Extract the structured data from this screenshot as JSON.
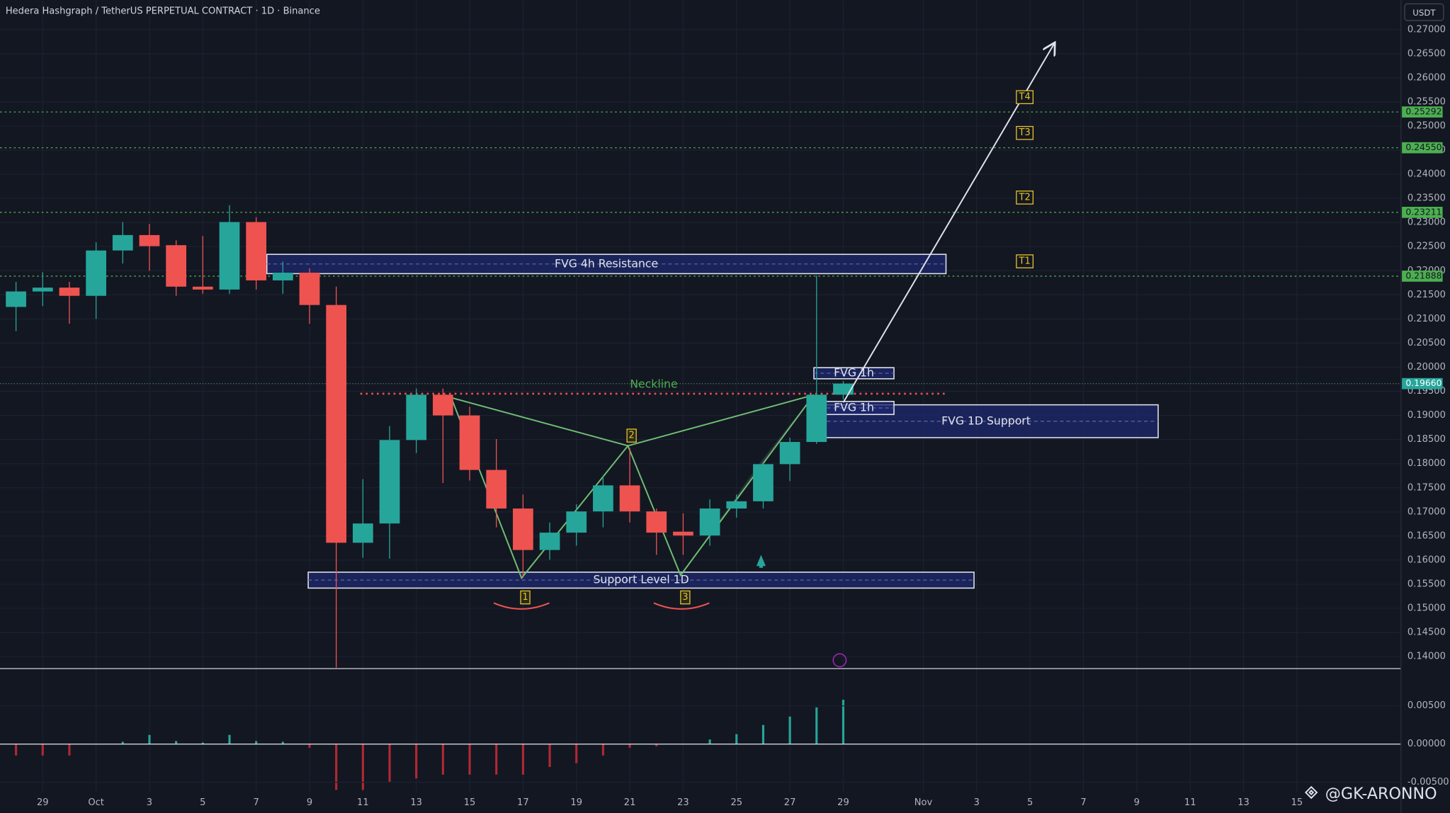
{
  "chart_data": {
    "type": "candlestick",
    "title": "Hedera Hashgraph / TetherUS PERPETUAL CONTRACT · 1D · Binance",
    "currency": "USDT",
    "watermark": "@GK-ARONNO",
    "x": [
      0,
      1,
      2,
      3,
      4,
      5,
      6,
      7,
      8,
      9,
      10,
      11,
      12,
      13,
      14,
      15,
      16,
      17,
      18,
      19,
      20,
      21,
      22,
      23,
      24,
      25,
      26,
      27,
      28,
      29,
      30,
      31
    ],
    "open": [
      0.2125,
      0.2157,
      0.2165,
      0.2148,
      0.2242,
      0.2274,
      0.2253,
      0.2167,
      0.2161,
      0.2301,
      0.218,
      0.2196,
      0.2129,
      0.1636,
      0.1676,
      0.1849,
      0.1943,
      0.19,
      0.1787,
      0.1707,
      0.1621,
      0.1657,
      0.1701,
      0.1755,
      0.1701,
      0.1659,
      0.1651,
      0.1707,
      0.1722,
      0.1799,
      0.1845,
      0.1943
    ],
    "high": [
      0.2177,
      0.2197,
      0.2177,
      0.2259,
      0.2301,
      0.2297,
      0.2263,
      0.2272,
      0.2336,
      0.2311,
      0.2219,
      0.2205,
      0.2167,
      0.1768,
      0.1878,
      0.1956,
      0.1956,
      0.1918,
      0.1851,
      0.1736,
      0.1678,
      0.1716,
      0.1774,
      0.1832,
      0.1707,
      0.1697,
      0.1726,
      0.1736,
      0.1803,
      0.1854,
      0.219,
      0.1971
    ],
    "low": [
      0.2075,
      0.2127,
      0.209,
      0.21,
      0.2215,
      0.22,
      0.2148,
      0.2152,
      0.2152,
      0.2161,
      0.2152,
      0.209,
      0.1377,
      0.1605,
      0.1603,
      0.1822,
      0.176,
      0.1765,
      0.1668,
      0.1563,
      0.1601,
      0.163,
      0.1668,
      0.1678,
      0.1611,
      0.1611,
      0.163,
      0.1688,
      0.1707,
      0.1764,
      0.1841,
      0.1933
    ],
    "close": [
      0.2157,
      0.2165,
      0.2148,
      0.2242,
      0.2274,
      0.2251,
      0.2167,
      0.2161,
      0.2301,
      0.218,
      0.2196,
      0.2129,
      0.1636,
      0.1676,
      0.1849,
      0.1943,
      0.19,
      0.1787,
      0.1707,
      0.1621,
      0.1657,
      0.1701,
      0.1755,
      0.1701,
      0.1657,
      0.1651,
      0.1707,
      0.1722,
      0.1799,
      0.1845,
      0.1943,
      0.1966
    ],
    "up_color": "#26a69a",
    "down_color": "#ef5350",
    "xlim": [
      -0.6,
      51.9
    ],
    "xticks": [
      {
        "value": 1,
        "label": "29"
      },
      {
        "value": 3,
        "label": "Oct"
      },
      {
        "value": 5,
        "label": "3"
      },
      {
        "value": 7,
        "label": "5"
      },
      {
        "value": 9,
        "label": "7"
      },
      {
        "value": 11,
        "label": "9"
      },
      {
        "value": 13,
        "label": "11"
      },
      {
        "value": 15,
        "label": "13"
      },
      {
        "value": 17,
        "label": "15"
      },
      {
        "value": 19,
        "label": "17"
      },
      {
        "value": 21,
        "label": "19"
      },
      {
        "value": 23,
        "label": "21"
      },
      {
        "value": 25,
        "label": "23"
      },
      {
        "value": 27,
        "label": "25"
      },
      {
        "value": 29,
        "label": "27"
      },
      {
        "value": 31,
        "label": "29"
      },
      {
        "value": 34,
        "label": "Nov"
      },
      {
        "value": 36,
        "label": "3"
      },
      {
        "value": 38,
        "label": "5"
      },
      {
        "value": 40,
        "label": "7"
      },
      {
        "value": 42,
        "label": "9"
      },
      {
        "value": 44,
        "label": "11"
      },
      {
        "value": 46,
        "label": "13"
      },
      {
        "value": 48,
        "label": "15"
      }
    ],
    "ylim": [
      0.1377,
      0.2761
    ],
    "yticks": [
      {
        "value": 0.27,
        "label": "0.27000"
      },
      {
        "value": 0.265,
        "label": "0.26500"
      },
      {
        "value": 0.26,
        "label": "0.26000"
      },
      {
        "value": 0.255,
        "label": "0.25500"
      },
      {
        "value": 0.25,
        "label": "0.25000"
      },
      {
        "value": 0.245,
        "label": "0.24500"
      },
      {
        "value": 0.24,
        "label": "0.24000"
      },
      {
        "value": 0.235,
        "label": "0.23500"
      },
      {
        "value": 0.23,
        "label": "0.23000"
      },
      {
        "value": 0.225,
        "label": "0.22500"
      },
      {
        "value": 0.22,
        "label": "0.22000"
      },
      {
        "value": 0.215,
        "label": "0.21500"
      },
      {
        "value": 0.21,
        "label": "0.21000"
      },
      {
        "value": 0.205,
        "label": "0.20500"
      },
      {
        "value": 0.2,
        "label": "0.20000"
      },
      {
        "value": 0.195,
        "label": "0.19500"
      },
      {
        "value": 0.19,
        "label": "0.19000"
      },
      {
        "value": 0.185,
        "label": "0.18500"
      },
      {
        "value": 0.18,
        "label": "0.18000"
      },
      {
        "value": 0.175,
        "label": "0.17500"
      },
      {
        "value": 0.17,
        "label": "0.17000"
      },
      {
        "value": 0.165,
        "label": "0.16500"
      },
      {
        "value": 0.16,
        "label": "0.16000"
      },
      {
        "value": 0.155,
        "label": "0.15500"
      },
      {
        "value": 0.15,
        "label": "0.15000"
      },
      {
        "value": 0.145,
        "label": "0.14500"
      },
      {
        "value": 0.14,
        "label": "0.14000"
      }
    ],
    "grid": true,
    "levels": [
      {
        "value": 0.25292,
        "target": "T4"
      },
      {
        "value": 0.2455,
        "label": "0.24550",
        "target": "T3"
      },
      {
        "value": 0.23211,
        "target": "T2"
      },
      {
        "value": 0.21888,
        "target": "T1"
      }
    ],
    "level_color": "#4caf50",
    "last_price": {
      "value": 0.1966,
      "label": "0.19660"
    },
    "neckline": {
      "label": "Neckline",
      "value": 0.1945
    },
    "zones": [
      {
        "label": "FVG 4h Resistance",
        "top": 0.2234,
        "bottom": 0.2194
      },
      {
        "label": "FVG 1h",
        "top": 0.1999,
        "bottom": 0.1976
      },
      {
        "label": "FVG  1D Support",
        "top": 0.1922,
        "bottom": 0.1854
      },
      {
        "label": "FVG 1h",
        "top": 0.1929,
        "bottom": 0.1902
      },
      {
        "label": "Support Level 1D",
        "top": 0.1575,
        "bottom": 0.1542
      }
    ],
    "pattern_points": [
      "1",
      "2",
      "3"
    ],
    "oscillator": {
      "type": "bar",
      "values": [
        -0.0015,
        -0.0015,
        -0.0015,
        0,
        0.0003,
        0.0012,
        0.0004,
        0.0002,
        0.0012,
        0.0004,
        0.0003,
        -0.0005,
        -0.006,
        -0.006,
        -0.005,
        -0.0045,
        -0.004,
        -0.004,
        -0.004,
        -0.004,
        -0.003,
        -0.0025,
        -0.0015,
        -0.0005,
        -0.0003,
        0,
        0.0006,
        0.0013,
        0.0025,
        0.0036,
        0.0048,
        0.0058
      ],
      "ylim": [
        -0.00634,
        0.00988
      ],
      "yticks": [
        {
          "value": 0.005,
          "label": "0.00500"
        },
        {
          "value": 0,
          "label": "0.00000"
        },
        {
          "value": -0.005,
          "label": "-0.00500"
        }
      ]
    }
  }
}
